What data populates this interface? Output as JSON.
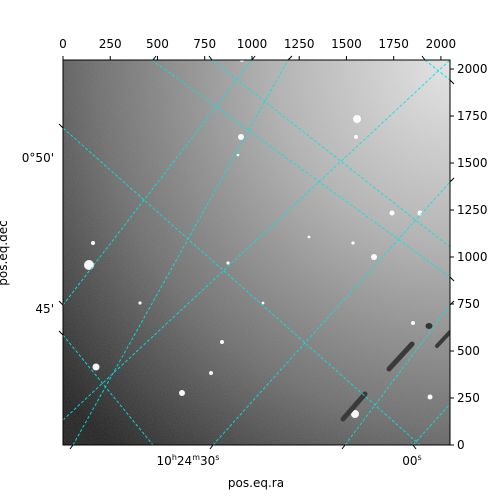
{
  "chart_data": {
    "type": "image",
    "pixel_axes": {
      "x_ticks": [
        0,
        250,
        500,
        750,
        1000,
        1250,
        1500,
        1750,
        2000
      ],
      "y_ticks": [
        0,
        250,
        500,
        750,
        1000,
        1250,
        1500,
        1750,
        2000
      ],
      "xlim": [
        0,
        2048
      ],
      "ylim": [
        0,
        2048
      ]
    },
    "world_axes": {
      "xlabel": "pos.eq.ra",
      "ylabel": "pos.eq.dec",
      "ra_tick_labels": [
        {
          "main": "10",
          "sup1": "h",
          "mid": "24",
          "sup2": "m",
          "end": "30",
          "sup3": "s"
        },
        {
          "main": "00",
          "sup1": "",
          "mid": "",
          "sup2": "",
          "end": "",
          "sup3": "s"
        }
      ],
      "dec_tick_labels": [
        "0°50'",
        "45'"
      ]
    },
    "grid": true,
    "grid_color": "#00e5e5",
    "colormap": "gray"
  }
}
